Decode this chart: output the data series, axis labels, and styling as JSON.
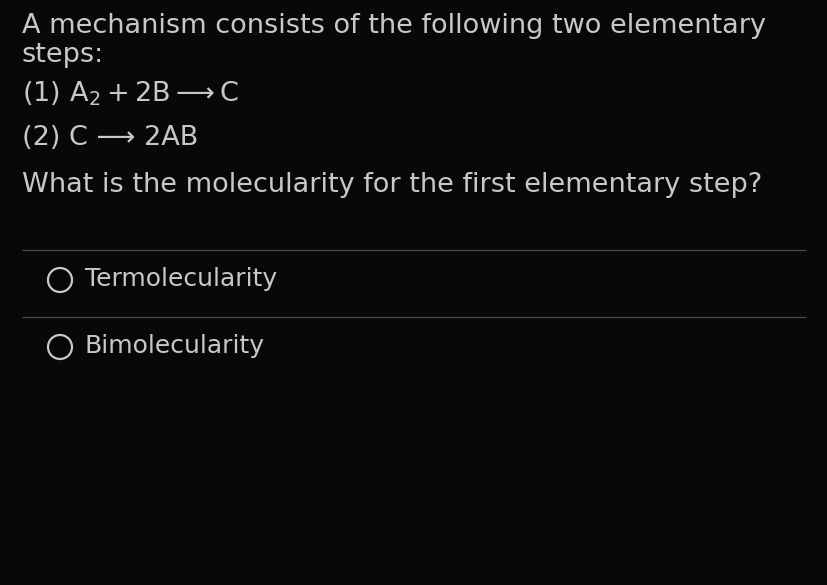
{
  "bg_color": "#080808",
  "text_color": "#c8c8c8",
  "line_color": "#484848",
  "title_line1": "A mechanism consists of the following two elementary",
  "title_line2": "steps:",
  "step2_text": "(2) C ⟶ 2AB",
  "question": "What is the molecularity for the first elementary step?",
  "option1": "Termolecularity",
  "option2": "Bimolecularity",
  "font_size_main": 19.5,
  "font_size_options": 18,
  "arrow": "⟶"
}
